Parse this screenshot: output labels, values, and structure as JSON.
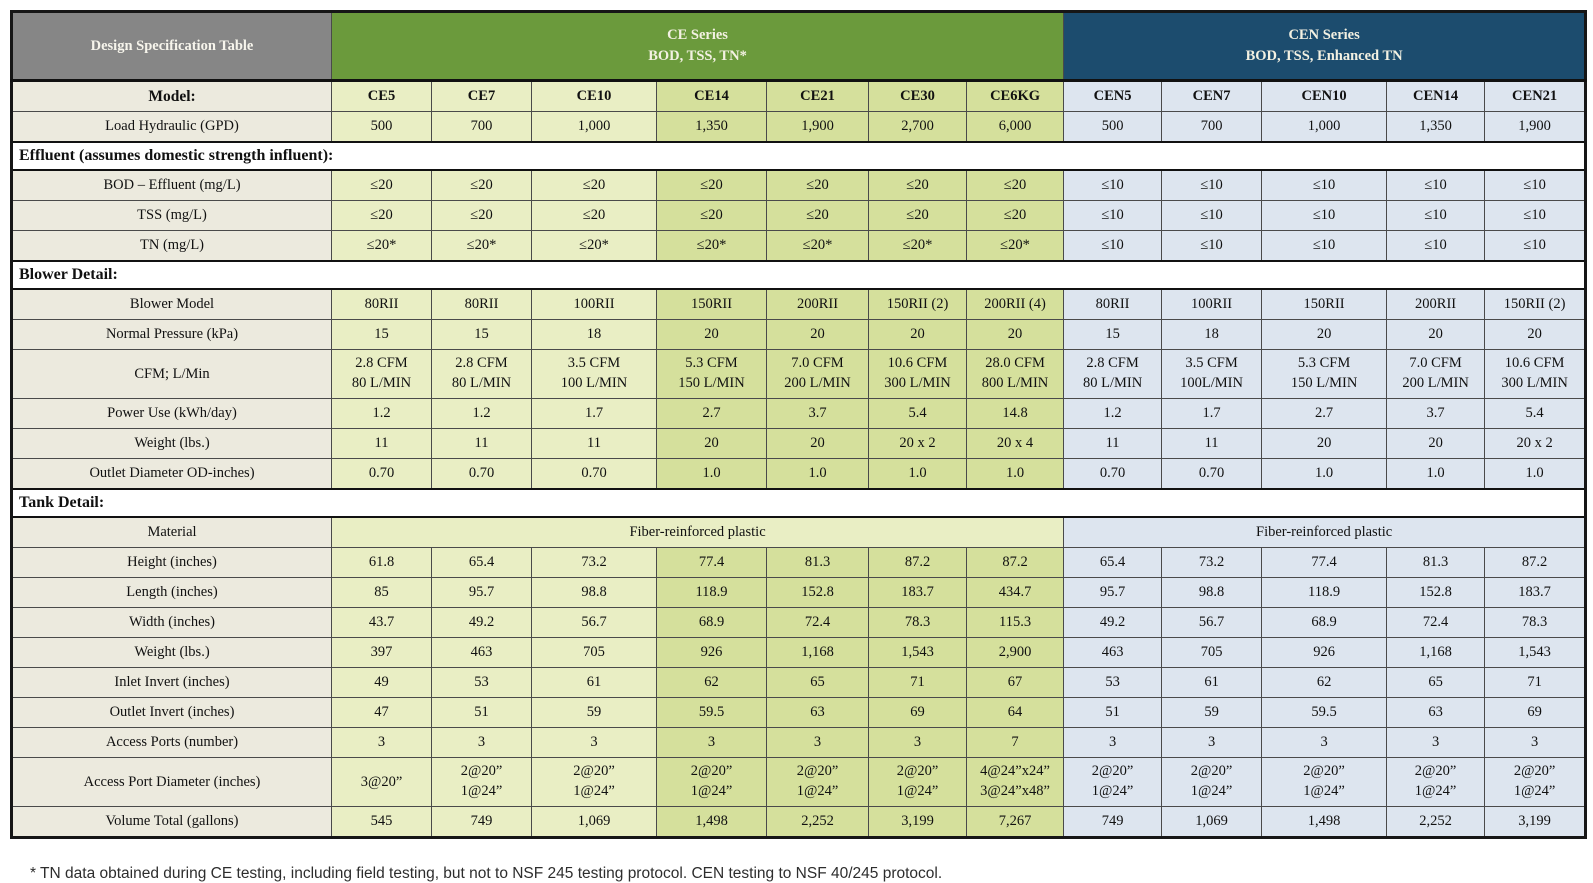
{
  "header": {
    "title": "Design Specification Table",
    "ce_group_line1": "CE Series",
    "ce_group_line2": "BOD, TSS, TN*",
    "cen_group_line1": "CEN Series",
    "cen_group_line2": "BOD, TSS, Enhanced TN"
  },
  "colors": {
    "banner_grey": "#868686",
    "banner_green": "#6b9a3c",
    "banner_blue": "#1c4c6e",
    "label_bg": "#eceade",
    "ce_light": "#e9eec4",
    "ce_dark": "#d5e09c",
    "cen_bg": "#dde5ef",
    "banner_text": "#f3f1e2"
  },
  "table": {
    "rows": [
      {
        "type": "data",
        "bold": true,
        "label": "Model:",
        "values": [
          "CE5",
          "CE7",
          "CE10",
          "CE14",
          "CE21",
          "CE30",
          "CE6KG",
          "CEN5",
          "CEN7",
          "CEN10",
          "CEN14",
          "CEN21"
        ]
      },
      {
        "type": "data",
        "label": "Load Hydraulic (GPD)",
        "values": [
          "500",
          "700",
          "1,000",
          "1,350",
          "1,900",
          "2,700",
          "6,000",
          "500",
          "700",
          "1,000",
          "1,350",
          "1,900"
        ]
      },
      {
        "type": "section",
        "label": "Effluent (assumes domestic strength influent):"
      },
      {
        "type": "data",
        "label": "BOD – Effluent (mg/L)",
        "values": [
          "≤20",
          "≤20",
          "≤20",
          "≤20",
          "≤20",
          "≤20",
          "≤20",
          "≤10",
          "≤10",
          "≤10",
          "≤10",
          "≤10"
        ]
      },
      {
        "type": "data",
        "label": "TSS (mg/L)",
        "values": [
          "≤20",
          "≤20",
          "≤20",
          "≤20",
          "≤20",
          "≤20",
          "≤20",
          "≤10",
          "≤10",
          "≤10",
          "≤10",
          "≤10"
        ]
      },
      {
        "type": "data",
        "label": "TN (mg/L)",
        "values": [
          "≤20*",
          "≤20*",
          "≤20*",
          "≤20*",
          "≤20*",
          "≤20*",
          "≤20*",
          "≤10",
          "≤10",
          "≤10",
          "≤10",
          "≤10"
        ]
      },
      {
        "type": "section",
        "label": "Blower Detail:"
      },
      {
        "type": "data",
        "label": "Blower Model",
        "values": [
          "80RII",
          "80RII",
          "100RII",
          "150RII",
          "200RII",
          "150RII (2)",
          "200RII (4)",
          "80RII",
          "100RII",
          "150RII",
          "200RII",
          "150RII (2)"
        ]
      },
      {
        "type": "data",
        "label": "Normal Pressure (kPa)",
        "values": [
          "15",
          "15",
          "18",
          "20",
          "20",
          "20",
          "20",
          "15",
          "18",
          "20",
          "20",
          "20"
        ]
      },
      {
        "type": "data",
        "label": "CFM; L/Min",
        "values": [
          [
            "2.8 CFM",
            "80 L/MIN"
          ],
          [
            "2.8 CFM",
            "80 L/MIN"
          ],
          [
            "3.5 CFM",
            "100 L/MIN"
          ],
          [
            "5.3 CFM",
            "150 L/MIN"
          ],
          [
            "7.0 CFM",
            "200 L/MIN"
          ],
          [
            "10.6 CFM",
            "300 L/MIN"
          ],
          [
            "28.0 CFM",
            "800 L/MIN"
          ],
          [
            "2.8 CFM",
            "80 L/MIN"
          ],
          [
            "3.5 CFM",
            "100L/MIN"
          ],
          [
            "5.3 CFM",
            "150 L/MIN"
          ],
          [
            "7.0 CFM",
            "200 L/MIN"
          ],
          [
            "10.6 CFM",
            "300 L/MIN"
          ]
        ]
      },
      {
        "type": "data",
        "label": "Power Use (kWh/day)",
        "values": [
          "1.2",
          "1.2",
          "1.7",
          "2.7",
          "3.7",
          "5.4",
          "14.8",
          "1.2",
          "1.7",
          "2.7",
          "3.7",
          "5.4"
        ]
      },
      {
        "type": "data",
        "label": "Weight (lbs.)",
        "values": [
          "11",
          "11",
          "11",
          "20",
          "20",
          "20 x 2",
          "20 x 4",
          "11",
          "11",
          "20",
          "20",
          "20 x 2"
        ]
      },
      {
        "type": "data",
        "label": "Outlet Diameter OD-inches)",
        "values": [
          "0.70",
          "0.70",
          "0.70",
          "1.0",
          "1.0",
          "1.0",
          "1.0",
          "0.70",
          "0.70",
          "1.0",
          "1.0",
          "1.0"
        ]
      },
      {
        "type": "section",
        "label": "Tank Detail:"
      },
      {
        "type": "merged",
        "label": "Material",
        "ce_value": "Fiber-reinforced plastic",
        "cen_value": "Fiber-reinforced plastic"
      },
      {
        "type": "data",
        "label": "Height (inches)",
        "values": [
          "61.8",
          "65.4",
          "73.2",
          "77.4",
          "81.3",
          "87.2",
          "87.2",
          "65.4",
          "73.2",
          "77.4",
          "81.3",
          "87.2"
        ]
      },
      {
        "type": "data",
        "label": "Length (inches)",
        "values": [
          "85",
          "95.7",
          "98.8",
          "118.9",
          "152.8",
          "183.7",
          "434.7",
          "95.7",
          "98.8",
          "118.9",
          "152.8",
          "183.7"
        ]
      },
      {
        "type": "data",
        "label": "Width (inches)",
        "values": [
          "43.7",
          "49.2",
          "56.7",
          "68.9",
          "72.4",
          "78.3",
          "115.3",
          "49.2",
          "56.7",
          "68.9",
          "72.4",
          "78.3"
        ]
      },
      {
        "type": "data",
        "label": "Weight (lbs.)",
        "values": [
          "397",
          "463",
          "705",
          "926",
          "1,168",
          "1,543",
          "2,900",
          "463",
          "705",
          "926",
          "1,168",
          "1,543"
        ]
      },
      {
        "type": "data",
        "label": "Inlet Invert (inches)",
        "values": [
          "49",
          "53",
          "61",
          "62",
          "65",
          "71",
          "67",
          "53",
          "61",
          "62",
          "65",
          "71"
        ]
      },
      {
        "type": "data",
        "label": "Outlet Invert (inches)",
        "values": [
          "47",
          "51",
          "59",
          "59.5",
          "63",
          "69",
          "64",
          "51",
          "59",
          "59.5",
          "63",
          "69"
        ]
      },
      {
        "type": "data",
        "label": "Access Ports (number)",
        "values": [
          "3",
          "3",
          "3",
          "3",
          "3",
          "3",
          "7",
          "3",
          "3",
          "3",
          "3",
          "3"
        ]
      },
      {
        "type": "data",
        "label": "Access Port Diameter (inches)",
        "values": [
          "3@20”",
          [
            "2@20”",
            "1@24”"
          ],
          [
            "2@20”",
            "1@24”"
          ],
          [
            "2@20”",
            "1@24”"
          ],
          [
            "2@20”",
            "1@24”"
          ],
          [
            "2@20”",
            "1@24”"
          ],
          [
            "4@24”x24”",
            "3@24”x48”"
          ],
          [
            "2@20”",
            "1@24”"
          ],
          [
            "2@20”",
            "1@24”"
          ],
          [
            "2@20”",
            "1@24”"
          ],
          [
            "2@20”",
            "1@24”"
          ],
          [
            "2@20”",
            "1@24”"
          ]
        ]
      },
      {
        "type": "data",
        "label": "Volume Total (gallons)",
        "values": [
          "545",
          "749",
          "1,069",
          "1,498",
          "2,252",
          "3,199",
          "7,267",
          "749",
          "1,069",
          "1,498",
          "2,252",
          "3,199"
        ]
      }
    ]
  },
  "footnote": "* TN data obtained during CE testing, including field testing, but not to NSF 245 testing protocol.  CEN testing to NSF 40/245 protocol."
}
